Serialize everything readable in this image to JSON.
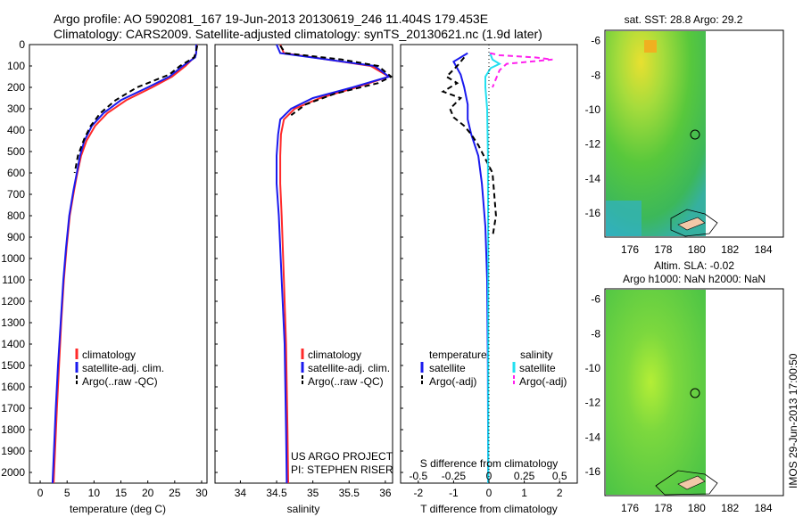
{
  "title": {
    "line1": "Argo profile: AO 5902081_167 19-Jun-2013 20130619_246 11.404S 179.453E",
    "line2": "Climatology: CARS2009. Satellite-adjusted climatology: synTS_20130621.nc (1.9d later)"
  },
  "side_stamp": "IMOS 29-Jun-2013 17:00:50",
  "colors": {
    "climatology": "#ff2a2a",
    "satellite": "#1a1aee",
    "argo": "#000000",
    "sal_satellite": "#22e0f0",
    "sal_argo": "#ff22ee"
  },
  "depth_ticks": [
    "0",
    "100",
    "200",
    "300",
    "400",
    "500",
    "600",
    "700",
    "800",
    "900",
    "1000",
    "1100",
    "1200",
    "1300",
    "1400",
    "1500",
    "1600",
    "1700",
    "1800",
    "1900",
    "2000"
  ],
  "panels": {
    "temp": {
      "xlabel": "temperature (deg C)",
      "xticks": [
        "0",
        "5",
        "10",
        "15",
        "20",
        "25",
        "30"
      ],
      "legend": [
        "climatology",
        "satellite-adj. clim.",
        "Argo(..raw -QC)"
      ]
    },
    "sal": {
      "xlabel": "salinity",
      "xticks": [
        "34",
        "34.5",
        "35",
        "35.5",
        "36"
      ],
      "legend": [
        "climatology",
        "satellite-adj. clim.",
        "Argo(..raw -QC)"
      ],
      "note1": "US ARGO PROJECT",
      "note2": "PI: STEPHEN RISER"
    },
    "diff": {
      "xlabel": "T difference from climatology",
      "xlabel_top": "S difference from climatology",
      "xticks_bottom": [
        "-2",
        "-1",
        "0",
        "1",
        "2"
      ],
      "xticks_top": [
        "-0.5",
        "-0.25",
        "0",
        "0.25",
        "0.5"
      ],
      "legend_temp_header": "temperature",
      "legend_sal_header": "salinity",
      "legend_temp": [
        "satellite",
        "Argo(-adj)"
      ],
      "legend_sal": [
        "satellite",
        "Argo(-adj)"
      ]
    },
    "map_sst": {
      "title": "sat. SST: 28.8 Argo: 29.2",
      "xticks": [
        "176",
        "178",
        "180",
        "182",
        "184"
      ],
      "yticks": [
        "-6",
        "-8",
        "-10",
        "-12",
        "-14",
        "-16"
      ]
    },
    "map_sla": {
      "title1": "Altim. SLA: -0.02",
      "title2": "Argo h1000: NaN h2000: NaN",
      "xticks": [
        "176",
        "178",
        "180",
        "182",
        "184"
      ],
      "yticks": [
        "-6",
        "-8",
        "-10",
        "-12",
        "-14",
        "-16"
      ]
    }
  },
  "chart_data": [
    {
      "type": "line",
      "name": "temperature profile",
      "xlim": [
        -2,
        31
      ],
      "ylim": [
        2050,
        0
      ],
      "series": [
        {
          "name": "climatology",
          "x": [
            29.1,
            29.0,
            28.6,
            27,
            24.5,
            20.8,
            16,
            12.5,
            10.2,
            8.6,
            7.6,
            6.9,
            6.3,
            5.5,
            4.9,
            4.4,
            3.9,
            3.5,
            3.1,
            2.5
          ],
          "depth": [
            0,
            40,
            60,
            100,
            150,
            200,
            260,
            320,
            380,
            450,
            520,
            600,
            680,
            800,
            950,
            1100,
            1300,
            1500,
            1700,
            2050
          ]
        },
        {
          "name": "satellite-adj. clim.",
          "x": [
            29.0,
            29.0,
            28.8,
            26.5,
            24,
            20,
            15,
            11.8,
            9.6,
            8.2,
            7.4,
            6.8,
            6.2,
            5.4,
            4.8,
            4.3,
            3.8,
            3.3,
            2.9,
            2.3
          ],
          "depth": [
            0,
            40,
            60,
            100,
            150,
            200,
            260,
            320,
            380,
            450,
            520,
            600,
            680,
            800,
            950,
            1100,
            1300,
            1500,
            1700,
            2050
          ]
        },
        {
          "name": "Argo(..raw -QC)",
          "x": [
            29.2,
            28.9,
            28.6,
            26,
            24,
            21,
            18,
            14,
            11.2,
            9.4,
            8.2,
            7.0,
            6.4
          ],
          "depth": [
            5,
            40,
            60,
            100,
            140,
            170,
            200,
            260,
            320,
            380,
            440,
            520,
            600
          ]
        }
      ]
    },
    {
      "type": "line",
      "name": "salinity profile",
      "xlim": [
        33.65,
        36.1
      ],
      "ylim": [
        2050,
        0
      ],
      "series": [
        {
          "name": "climatology",
          "x": [
            34.55,
            34.6,
            35.2,
            35.8,
            36.05,
            35.6,
            35.1,
            34.75,
            34.6,
            34.56,
            34.55,
            34.55,
            34.57,
            34.6,
            34.63,
            34.65,
            34.66
          ],
          "depth": [
            0,
            40,
            70,
            100,
            150,
            200,
            250,
            300,
            350,
            420,
            520,
            650,
            800,
            1100,
            1400,
            1800,
            2050
          ]
        },
        {
          "name": "satellite-adj. clim.",
          "x": [
            34.5,
            34.55,
            35.2,
            35.85,
            36.05,
            35.55,
            35.0,
            34.7,
            34.55,
            34.52,
            34.5,
            34.5,
            34.53,
            34.57,
            34.61,
            34.63,
            34.64
          ],
          "depth": [
            0,
            40,
            70,
            100,
            150,
            200,
            250,
            300,
            350,
            420,
            520,
            650,
            800,
            1100,
            1400,
            1800,
            2050
          ]
        },
        {
          "name": "Argo(..raw -QC)",
          "x": [
            34.55,
            34.62,
            35.4,
            35.9,
            36.08,
            35.9,
            35.3,
            34.9,
            34.7
          ],
          "depth": [
            5,
            40,
            70,
            100,
            150,
            180,
            230,
            280,
            330
          ]
        }
      ]
    },
    {
      "type": "line",
      "name": "difference from climatology",
      "xlim": [
        -2.5,
        2.5
      ],
      "ylim": [
        2050,
        0
      ],
      "series": [
        {
          "name": "temperature satellite",
          "x": [
            -0.6,
            -1.0,
            -0.8,
            -0.7,
            -0.6,
            -0.6,
            -0.5,
            -0.3,
            -0.2,
            -0.1,
            -0.05,
            -0.03,
            -0.02
          ],
          "depth": [
            40,
            80,
            140,
            200,
            280,
            350,
            420,
            520,
            650,
            850,
            1100,
            1500,
            2050
          ]
        },
        {
          "name": "temperature Argo(-adj)",
          "x": [
            -0.7,
            -0.9,
            -1.2,
            -0.9,
            -1.3,
            -0.8,
            -1.1,
            -1.0,
            -0.7,
            -0.5,
            -0.3,
            0.1,
            0.2,
            0.1
          ],
          "depth": [
            60,
            100,
            150,
            180,
            220,
            250,
            300,
            340,
            380,
            420,
            470,
            600,
            800,
            900
          ]
        },
        {
          "name": "salinity satellite",
          "x": [
            0.03,
            0.1,
            0.3,
            0.05,
            -0.1,
            -0.1,
            -0.05,
            -0.03,
            -0.02,
            -0.02
          ],
          "depth": [
            40,
            70,
            90,
            110,
            150,
            200,
            300,
            500,
            1000,
            2050
          ]
        },
        {
          "name": "salinity Argo(-adj)",
          "x": [
            0.03,
            0.3,
            1.3,
            1.8,
            0.5,
            0.3,
            0.2,
            0.1
          ],
          "depth": [
            40,
            50,
            60,
            70,
            90,
            120,
            160,
            200
          ]
        }
      ]
    }
  ]
}
